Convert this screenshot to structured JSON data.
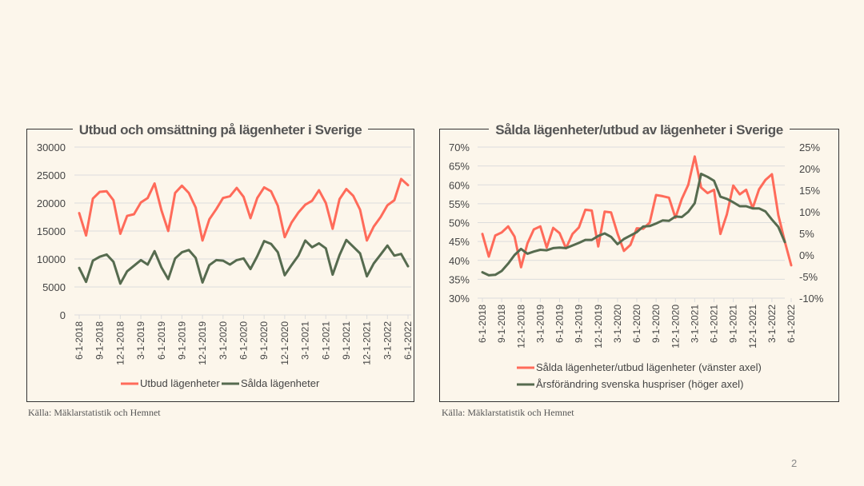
{
  "page": {
    "number": "2"
  },
  "sources": [
    "Källa: Mäklarstatistik och Hemnet",
    "Källa: Mäklarstatistik och Hemnet"
  ],
  "colors": {
    "red": "#ff6b5a",
    "green": "#566b4f",
    "grid": "#dcdcdc",
    "background": "#fcf6eb"
  },
  "chart_data": [
    {
      "type": "line",
      "title": "Utbud och omsättning på lägenheter i Sverige",
      "xlabel": "",
      "ylabel": "",
      "ylim": [
        0,
        30000
      ],
      "yticks": [
        "0",
        "5000",
        "10000",
        "15000",
        "20000",
        "25000",
        "30000"
      ],
      "grid": true,
      "legend": "bottom",
      "x_start": "6-1-2018",
      "x_tick_labels": [
        "6-1-2018",
        "9-1-2018",
        "12-1-2018",
        "3-1-2019",
        "6-1-2019",
        "9-1-2019",
        "12-1-2019",
        "3-1-2020",
        "6-1-2020",
        "9-1-2020",
        "12-1-2020",
        "3-1-2021",
        "6-1-2021",
        "9-1-2021",
        "12-1-2021",
        "3-1-2022",
        "6-1-2022"
      ],
      "series": [
        {
          "name": "Utbud lägenheter",
          "color": "#ff6b5a",
          "values": [
            18200,
            14200,
            20800,
            22000,
            22100,
            20500,
            14500,
            17700,
            18000,
            20100,
            20900,
            23500,
            18700,
            15000,
            21800,
            23100,
            21800,
            19200,
            13300,
            17100,
            18900,
            20900,
            21200,
            22700,
            21100,
            17300,
            20900,
            22800,
            22100,
            19500,
            13900,
            16500,
            18300,
            19700,
            20400,
            22300,
            20000,
            15400,
            20700,
            22500,
            21300,
            18800,
            13300,
            15800,
            17500,
            19600,
            20500,
            24300,
            23200
          ]
        },
        {
          "name": "Sålda lägenheter",
          "color": "#566b4f",
          "values": [
            8400,
            5900,
            9700,
            10400,
            10800,
            9500,
            5600,
            7800,
            8800,
            9800,
            9000,
            11400,
            8500,
            6400,
            10100,
            11200,
            11600,
            10200,
            5800,
            8900,
            9800,
            9700,
            9000,
            9800,
            10100,
            8200,
            10500,
            13200,
            12700,
            11200,
            7100,
            8900,
            10600,
            13300,
            12100,
            12800,
            11900,
            7200,
            10700,
            13400,
            12200,
            11000,
            6900,
            9200,
            10800,
            12400,
            10600,
            10900,
            8700
          ]
        }
      ]
    },
    {
      "type": "line",
      "title": "Sålda lägenheter/utbud av lägenheter i Sverige",
      "xlabel": "",
      "ylabel": "",
      "ylim": [
        0.3,
        0.7
      ],
      "yticks": [
        "30%",
        "35%",
        "40%",
        "45%",
        "50%",
        "55%",
        "60%",
        "65%",
        "70%"
      ],
      "y2lim": [
        -0.1,
        0.25
      ],
      "y2ticks": [
        "-10%",
        "-5%",
        "0%",
        "5%",
        "10%",
        "15%",
        "20%",
        "25%"
      ],
      "grid": true,
      "legend": "bottom",
      "x_start": "6-1-2018",
      "x_tick_labels": [
        "6-1-2018",
        "9-1-2018",
        "12-1-2018",
        "3-1-2019",
        "6-1-2019",
        "9-1-2019",
        "12-1-2019",
        "3-1-2020",
        "6-1-2020",
        "9-1-2020",
        "12-1-2020",
        "3-1-2021",
        "6-1-2021",
        "9-1-2021",
        "12-1-2021",
        "3-1-2022",
        "6-1-2022"
      ],
      "series": [
        {
          "name": "Sålda lägenheter/utbud lägenheter (vänster axel)",
          "color": "#ff6b5a",
          "axis": "left",
          "values": [
            0.47,
            0.41,
            0.466,
            0.474,
            0.49,
            0.463,
            0.382,
            0.445,
            0.482,
            0.49,
            0.434,
            0.486,
            0.472,
            0.432,
            0.47,
            0.487,
            0.534,
            0.532,
            0.437,
            0.529,
            0.527,
            0.471,
            0.425,
            0.441,
            0.485,
            0.484,
            0.5,
            0.573,
            0.57,
            0.566,
            0.513,
            0.563,
            0.6,
            0.675,
            0.593,
            0.578,
            0.587,
            0.47,
            0.522,
            0.598,
            0.575,
            0.587,
            0.538,
            0.588,
            0.613,
            0.628,
            0.52,
            0.45,
            0.387
          ]
        },
        {
          "name": "Årsförändring svenska huspriser (höger axel)",
          "color": "#566b4f",
          "axis": "right",
          "values": [
            -0.04,
            -0.047,
            -0.046,
            -0.037,
            -0.02,
            0.0,
            0.014,
            0.003,
            0.008,
            0.012,
            0.011,
            0.016,
            0.017,
            0.016,
            0.022,
            0.028,
            0.035,
            0.035,
            0.044,
            0.05,
            0.042,
            0.025,
            0.037,
            0.045,
            0.053,
            0.066,
            0.067,
            0.073,
            0.08,
            0.079,
            0.089,
            0.088,
            0.1,
            0.12,
            0.188,
            0.181,
            0.172,
            0.135,
            0.13,
            0.122,
            0.113,
            0.113,
            0.108,
            0.108,
            0.101,
            0.082,
            0.065,
            0.03
          ]
        }
      ]
    }
  ]
}
